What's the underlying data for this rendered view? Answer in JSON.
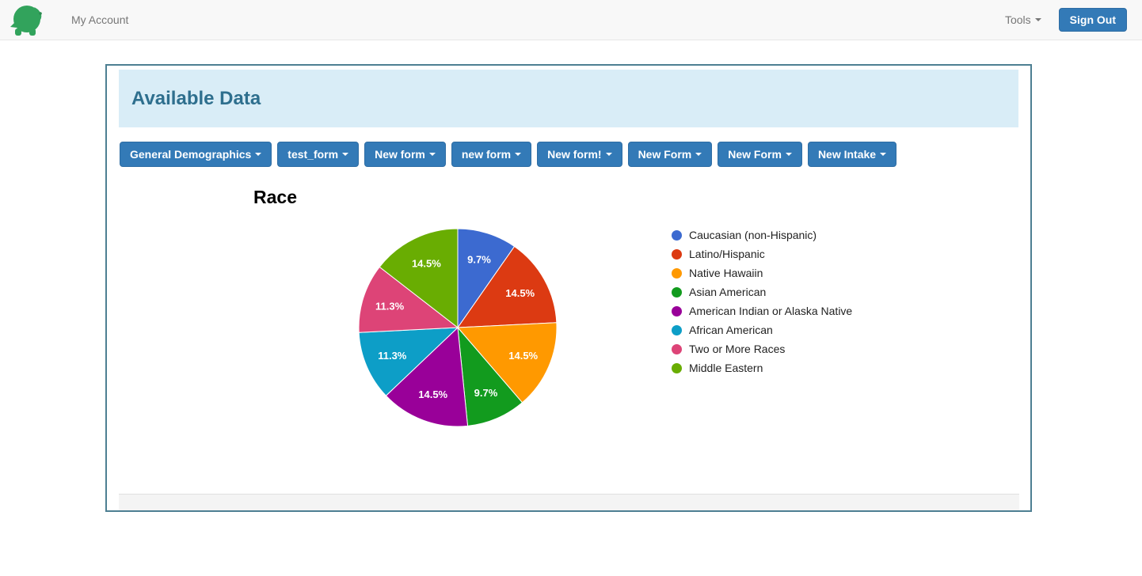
{
  "navbar": {
    "brand_icon": "turtle-logo",
    "my_account_label": "My Account",
    "tools_label": "Tools",
    "sign_out_label": "Sign Out"
  },
  "panel": {
    "title": "Available Data",
    "form_buttons": [
      "General Demographics",
      "test_form",
      "New form",
      "new form",
      "New form!",
      "New Form",
      "New Form",
      "New Intake"
    ]
  },
  "chart_data": {
    "type": "pie",
    "title": "Race",
    "labels": [
      "Caucasian (non-Hispanic)",
      "Latino/Hispanic",
      "Native Hawaiin",
      "Asian American",
      "American Indian or Alaska Native",
      "African American",
      "Two or More Races",
      "Middle Eastern"
    ],
    "values": [
      9.7,
      14.5,
      14.5,
      9.7,
      14.5,
      11.3,
      11.3,
      14.5
    ],
    "slice_labels": [
      "9.7%",
      "14.5%",
      "14.5%",
      "9.7%",
      "14.5%",
      "11.3%",
      "11.3%",
      "14.5%"
    ],
    "colors": [
      "#3c6ad0",
      "#dc3a12",
      "#ff9900",
      "#129b1e",
      "#990099",
      "#0d9ec7",
      "#dd4477",
      "#69ad02"
    ],
    "legend_position": "right",
    "start_angle_deg": 0,
    "direction": "clockwise"
  },
  "theme": {
    "button_blue": "#337ab7",
    "panel_border": "#4d7f92",
    "heading_bg": "#d9edf7",
    "heading_text": "#2e6f8e",
    "logo_green": "#32a35c"
  }
}
